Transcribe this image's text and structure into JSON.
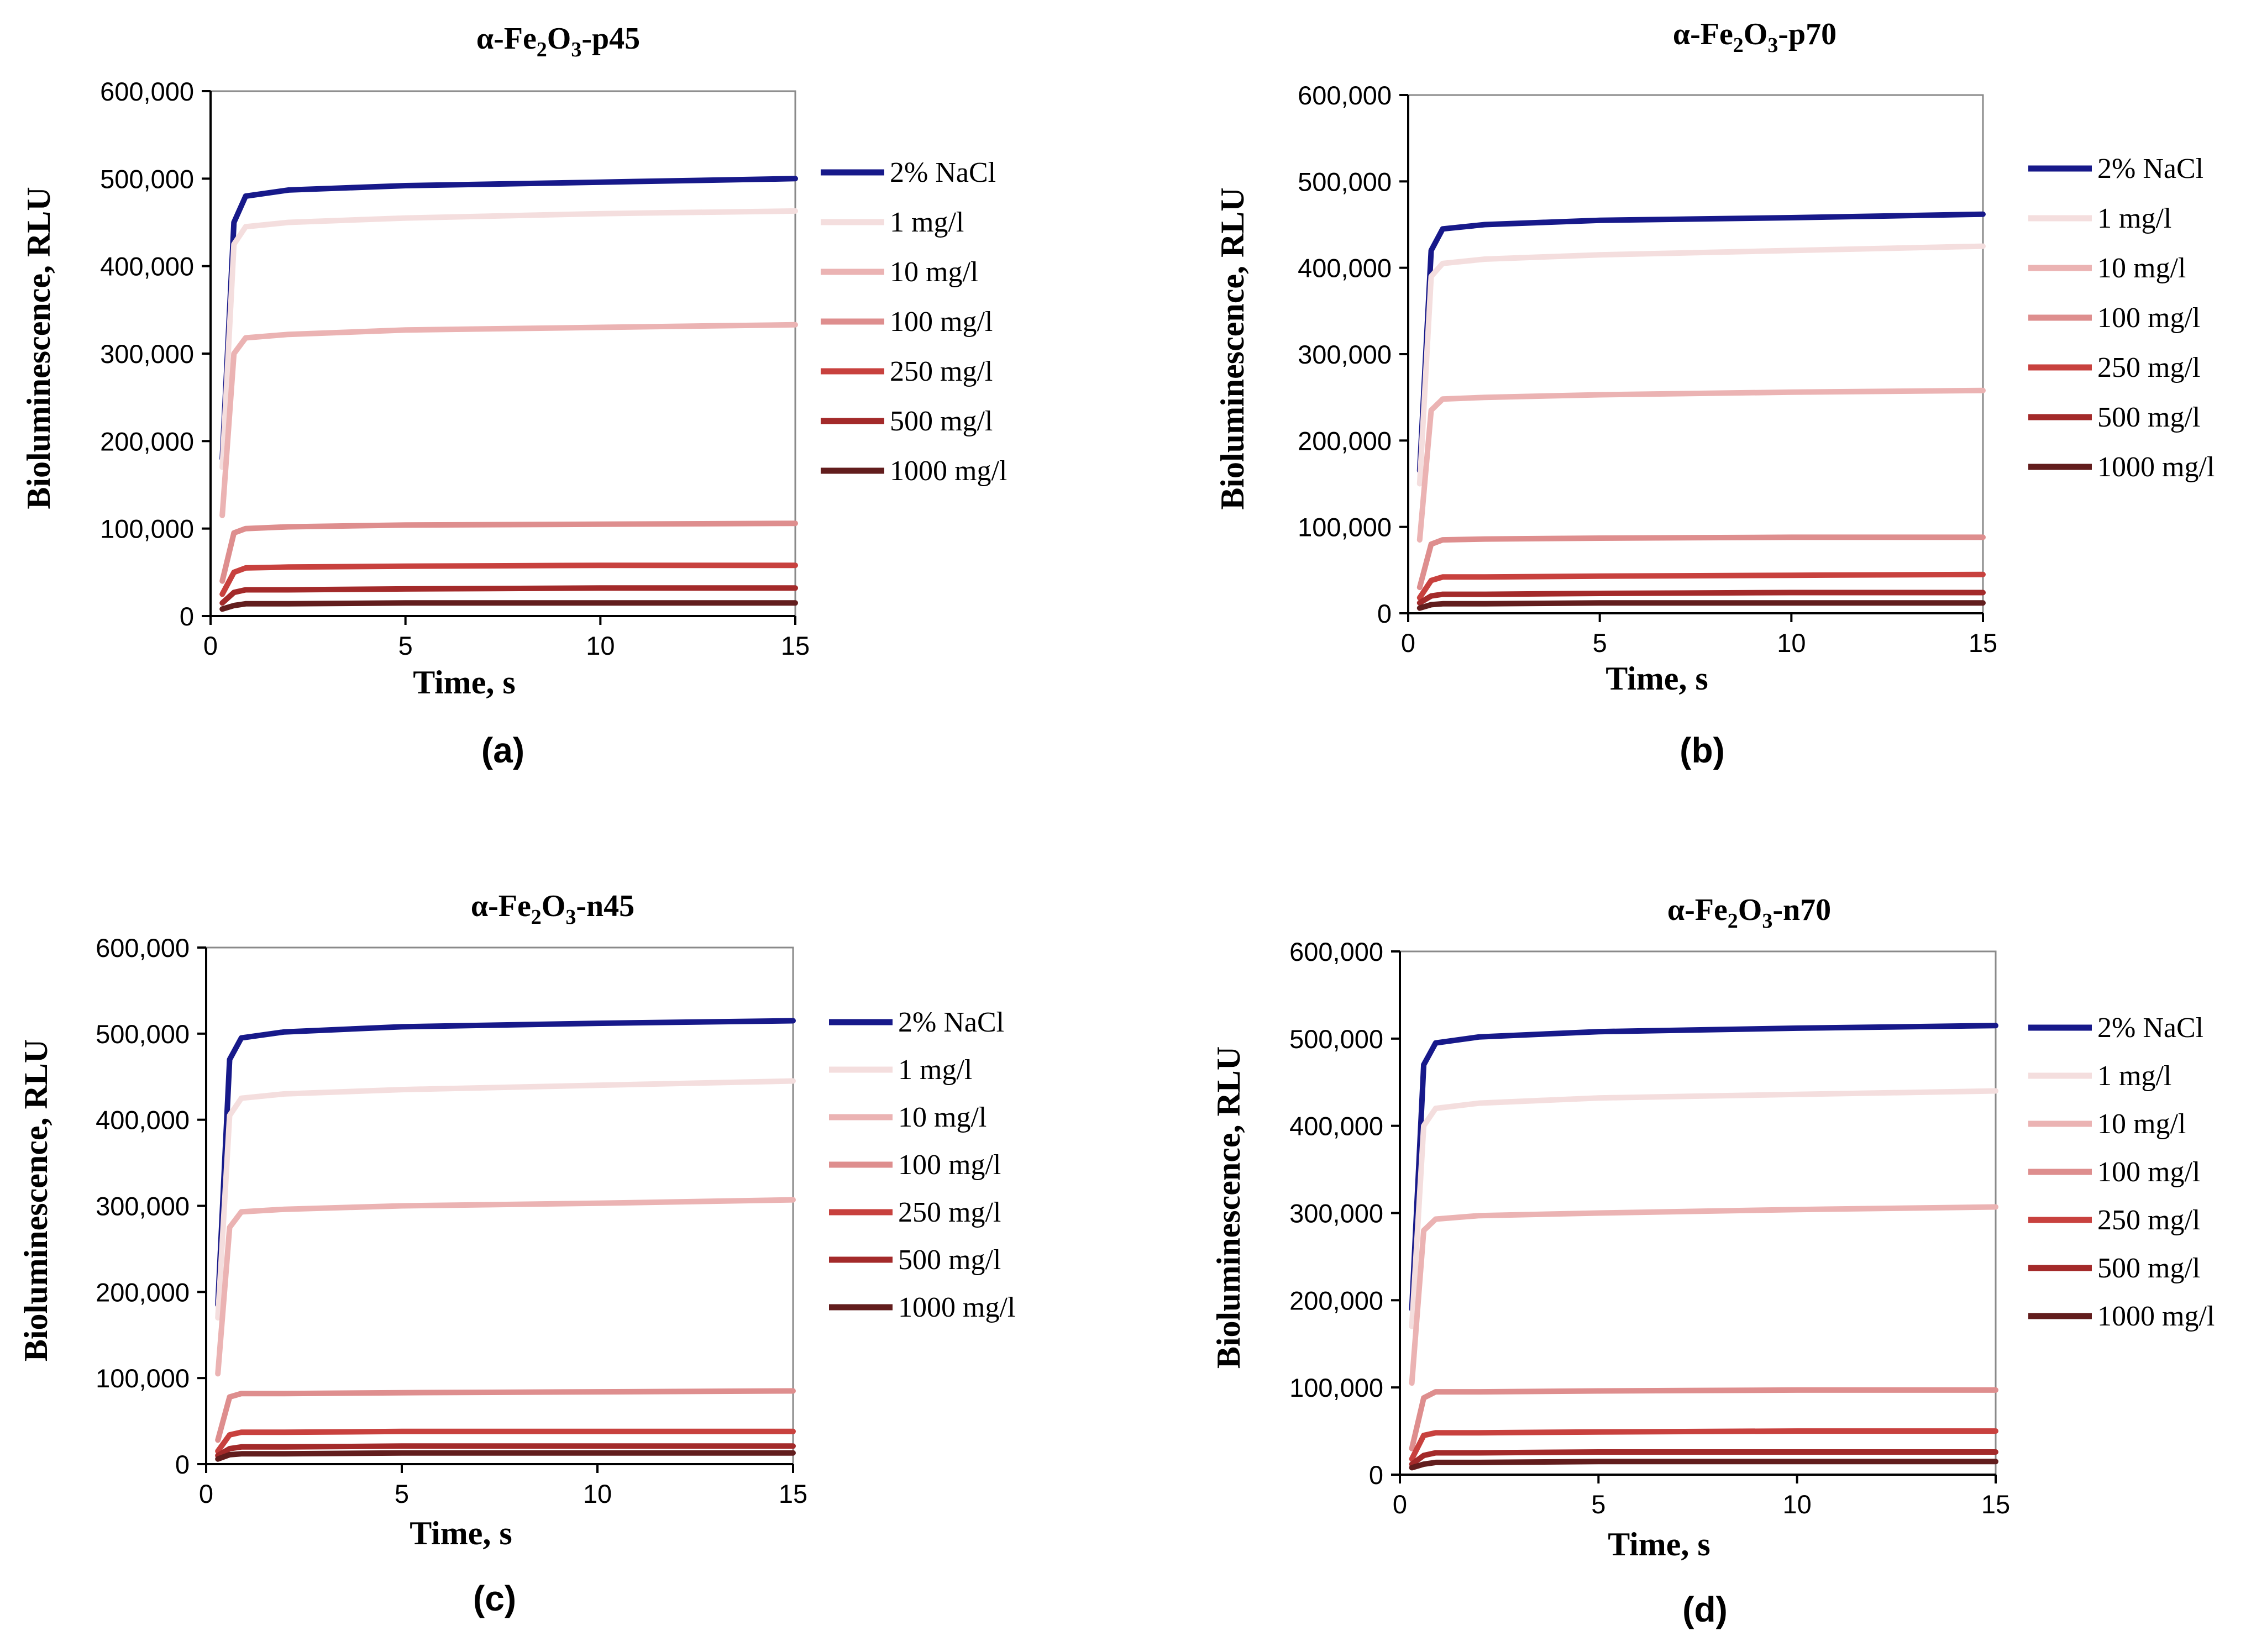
{
  "legend_labels": [
    "2% NaCl",
    "1 mg/l",
    "10 mg/l",
    "100 mg/l",
    "250 mg/l",
    "500 mg/l",
    "1000 mg/l"
  ],
  "series_colors": [
    "#17198a",
    "#f4dede",
    "#ebb3b3",
    "#de8e8e",
    "#c8413e",
    "#a32a2a",
    "#621d1d"
  ],
  "chart_data": [
    {
      "type": "line",
      "title_main": "α-Fe",
      "title_sub1": "2",
      "title_mid": "O",
      "title_sub2": "3",
      "title_suffix": "-p45",
      "caption": "(a)",
      "xlabel": "Time, s",
      "ylabel": "Bioluminescence, RLU",
      "xlim": [
        0,
        15
      ],
      "ylim": [
        0,
        600000
      ],
      "xticks": [
        0,
        5,
        10,
        15
      ],
      "xtick_labels": [
        "0",
        "5",
        "10",
        "15"
      ],
      "yticks": [
        0,
        100000,
        200000,
        300000,
        400000,
        500000,
        600000
      ],
      "ytick_labels": [
        "0",
        "100,000",
        "200,000",
        "300,000",
        "400,000",
        "500,000",
        "600,000"
      ],
      "legend_position": "right",
      "series": [
        {
          "name": "2% NaCl",
          "start": 180000,
          "x": [
            0.3,
            0.6,
            0.9,
            2,
            5,
            10,
            15
          ],
          "y": [
            180000,
            450000,
            480000,
            487000,
            492000,
            496000,
            500000
          ]
        },
        {
          "name": "1 mg/l",
          "start": 170000,
          "x": [
            0.3,
            0.6,
            0.9,
            2,
            5,
            10,
            15
          ],
          "y": [
            170000,
            425000,
            445000,
            450000,
            455000,
            460000,
            463000
          ]
        },
        {
          "name": "10 mg/l",
          "start": 115000,
          "x": [
            0.3,
            0.6,
            0.9,
            2,
            5,
            10,
            15
          ],
          "y": [
            115000,
            300000,
            318000,
            322000,
            327000,
            330000,
            333000
          ]
        },
        {
          "name": "100 mg/l",
          "start": 40000,
          "x": [
            0.3,
            0.6,
            0.9,
            2,
            5,
            10,
            15
          ],
          "y": [
            40000,
            95000,
            100000,
            102000,
            104000,
            105000,
            106000
          ]
        },
        {
          "name": "250 mg/l",
          "start": 25000,
          "x": [
            0.3,
            0.6,
            0.9,
            2,
            5,
            10,
            15
          ],
          "y": [
            25000,
            50000,
            55000,
            56000,
            57000,
            58000,
            58000
          ]
        },
        {
          "name": "500 mg/l",
          "start": 15000,
          "x": [
            0.3,
            0.6,
            0.9,
            2,
            5,
            10,
            15
          ],
          "y": [
            15000,
            27000,
            30000,
            30000,
            31000,
            32000,
            32000
          ]
        },
        {
          "name": "1000 mg/l",
          "start": 8000,
          "x": [
            0.3,
            0.6,
            0.9,
            2,
            5,
            10,
            15
          ],
          "y": [
            8000,
            12000,
            14000,
            14000,
            15000,
            15000,
            15000
          ]
        }
      ]
    },
    {
      "type": "line",
      "title_main": "α-Fe",
      "title_sub1": "2",
      "title_mid": "O",
      "title_sub2": "3",
      "title_suffix": "-p70",
      "caption": "(b)",
      "xlabel": "Time, s",
      "ylabel": "Bioluminescence, RLU",
      "xlim": [
        0,
        15
      ],
      "ylim": [
        0,
        600000
      ],
      "xticks": [
        0,
        5,
        10,
        15
      ],
      "xtick_labels": [
        "0",
        "5",
        "10",
        "15"
      ],
      "yticks": [
        0,
        100000,
        200000,
        300000,
        400000,
        500000,
        600000
      ],
      "ytick_labels": [
        "0",
        "100,000",
        "200,000",
        "300,000",
        "400,000",
        "500,000",
        "600,000"
      ],
      "legend_position": "right",
      "series": [
        {
          "name": "2% NaCl",
          "start": 165000,
          "x": [
            0.3,
            0.6,
            0.9,
            2,
            5,
            10,
            15
          ],
          "y": [
            165000,
            420000,
            445000,
            450000,
            455000,
            458000,
            462000
          ]
        },
        {
          "name": "1 mg/l",
          "start": 150000,
          "x": [
            0.3,
            0.6,
            0.9,
            2,
            5,
            10,
            15
          ],
          "y": [
            150000,
            390000,
            405000,
            410000,
            415000,
            420000,
            425000
          ]
        },
        {
          "name": "10 mg/l",
          "start": 85000,
          "x": [
            0.3,
            0.6,
            0.9,
            2,
            5,
            10,
            15
          ],
          "y": [
            85000,
            235000,
            248000,
            250000,
            253000,
            256000,
            258000
          ]
        },
        {
          "name": "100 mg/l",
          "start": 30000,
          "x": [
            0.3,
            0.6,
            0.9,
            2,
            5,
            10,
            15
          ],
          "y": [
            30000,
            80000,
            85000,
            86000,
            87000,
            88000,
            88000
          ]
        },
        {
          "name": "250 mg/l",
          "start": 18000,
          "x": [
            0.3,
            0.6,
            0.9,
            2,
            5,
            10,
            15
          ],
          "y": [
            18000,
            38000,
            42000,
            42000,
            43000,
            44000,
            45000
          ]
        },
        {
          "name": "500 mg/l",
          "start": 12000,
          "x": [
            0.3,
            0.6,
            0.9,
            2,
            5,
            10,
            15
          ],
          "y": [
            12000,
            20000,
            22000,
            22000,
            23000,
            24000,
            24000
          ]
        },
        {
          "name": "1000 mg/l",
          "start": 6000,
          "x": [
            0.3,
            0.6,
            0.9,
            2,
            5,
            10,
            15
          ],
          "y": [
            6000,
            10000,
            11000,
            11000,
            12000,
            12000,
            12000
          ]
        }
      ]
    },
    {
      "type": "line",
      "title_main": "α-Fe",
      "title_sub1": "2",
      "title_mid": "O",
      "title_sub2": "3",
      "title_suffix": "-n45",
      "caption": "(c)",
      "xlabel": "Time, s",
      "ylabel": "Bioluminescence, RLU",
      "xlim": [
        0,
        15
      ],
      "ylim": [
        0,
        600000
      ],
      "xticks": [
        0,
        5,
        10,
        15
      ],
      "xtick_labels": [
        "0",
        "5",
        "10",
        "15"
      ],
      "yticks": [
        0,
        100000,
        200000,
        300000,
        400000,
        500000,
        600000
      ],
      "ytick_labels": [
        "0",
        "100,000",
        "200,000",
        "300,000",
        "400,000",
        "500,000",
        "600,000"
      ],
      "legend_position": "right",
      "series": [
        {
          "name": "2% NaCl",
          "start": 185000,
          "x": [
            0.3,
            0.6,
            0.9,
            2,
            5,
            10,
            15
          ],
          "y": [
            185000,
            470000,
            495000,
            502000,
            508000,
            512000,
            515000
          ]
        },
        {
          "name": "1 mg/l",
          "start": 170000,
          "x": [
            0.3,
            0.6,
            0.9,
            2,
            5,
            10,
            15
          ],
          "y": [
            170000,
            405000,
            425000,
            430000,
            435000,
            440000,
            445000
          ]
        },
        {
          "name": "10 mg/l",
          "start": 105000,
          "x": [
            0.3,
            0.6,
            0.9,
            2,
            5,
            10,
            15
          ],
          "y": [
            105000,
            275000,
            293000,
            296000,
            300000,
            303000,
            307000
          ]
        },
        {
          "name": "100 mg/l",
          "start": 28000,
          "x": [
            0.3,
            0.6,
            0.9,
            2,
            5,
            10,
            15
          ],
          "y": [
            28000,
            78000,
            82000,
            82000,
            83000,
            84000,
            85000
          ]
        },
        {
          "name": "250 mg/l",
          "start": 15000,
          "x": [
            0.3,
            0.6,
            0.9,
            2,
            5,
            10,
            15
          ],
          "y": [
            15000,
            34000,
            37000,
            37000,
            38000,
            38000,
            38000
          ]
        },
        {
          "name": "500 mg/l",
          "start": 10000,
          "x": [
            0.3,
            0.6,
            0.9,
            2,
            5,
            10,
            15
          ],
          "y": [
            10000,
            18000,
            20000,
            20000,
            21000,
            21000,
            21000
          ]
        },
        {
          "name": "1000 mg/l",
          "start": 6000,
          "x": [
            0.3,
            0.6,
            0.9,
            2,
            5,
            10,
            15
          ],
          "y": [
            6000,
            11000,
            12000,
            12000,
            13000,
            13000,
            13000
          ]
        }
      ]
    },
    {
      "type": "line",
      "title_main": "α-Fe",
      "title_sub1": "2",
      "title_mid": "O",
      "title_sub2": "3",
      "title_suffix": "-n70",
      "caption": "(d)",
      "xlabel": "Time, s",
      "ylabel": "Bioluminescence, RLU",
      "xlim": [
        0,
        15
      ],
      "ylim": [
        0,
        600000
      ],
      "xticks": [
        0,
        5,
        10,
        15
      ],
      "xtick_labels": [
        "0",
        "5",
        "10",
        "15"
      ],
      "yticks": [
        0,
        100000,
        200000,
        300000,
        400000,
        500000,
        600000
      ],
      "ytick_labels": [
        "0",
        "100,000",
        "200,000",
        "300,000",
        "400,000",
        "500,000",
        "600,000"
      ],
      "legend_position": "right",
      "series": [
        {
          "name": "2% NaCl",
          "start": 190000,
          "x": [
            0.3,
            0.6,
            0.9,
            2,
            5,
            10,
            15
          ],
          "y": [
            190000,
            470000,
            495000,
            502000,
            508000,
            512000,
            515000
          ]
        },
        {
          "name": "1 mg/l",
          "start": 170000,
          "x": [
            0.3,
            0.6,
            0.9,
            2,
            5,
            10,
            15
          ],
          "y": [
            170000,
            400000,
            420000,
            426000,
            432000,
            436000,
            440000
          ]
        },
        {
          "name": "10 mg/l",
          "start": 105000,
          "x": [
            0.3,
            0.6,
            0.9,
            2,
            5,
            10,
            15
          ],
          "y": [
            105000,
            280000,
            293000,
            297000,
            300000,
            304000,
            307000
          ]
        },
        {
          "name": "100 mg/l",
          "start": 30000,
          "x": [
            0.3,
            0.6,
            0.9,
            2,
            5,
            10,
            15
          ],
          "y": [
            30000,
            88000,
            95000,
            95000,
            96000,
            97000,
            97000
          ]
        },
        {
          "name": "250 mg/l",
          "start": 18000,
          "x": [
            0.3,
            0.6,
            0.9,
            2,
            5,
            10,
            15
          ],
          "y": [
            18000,
            45000,
            48000,
            48000,
            49000,
            50000,
            50000
          ]
        },
        {
          "name": "500 mg/l",
          "start": 12000,
          "x": [
            0.3,
            0.6,
            0.9,
            2,
            5,
            10,
            15
          ],
          "y": [
            12000,
            22000,
            25000,
            25000,
            26000,
            26000,
            26000
          ]
        },
        {
          "name": "1000 mg/l",
          "start": 8000,
          "x": [
            0.3,
            0.6,
            0.9,
            2,
            5,
            10,
            15
          ],
          "y": [
            8000,
            12000,
            14000,
            14000,
            15000,
            15000,
            15000
          ]
        }
      ]
    }
  ]
}
